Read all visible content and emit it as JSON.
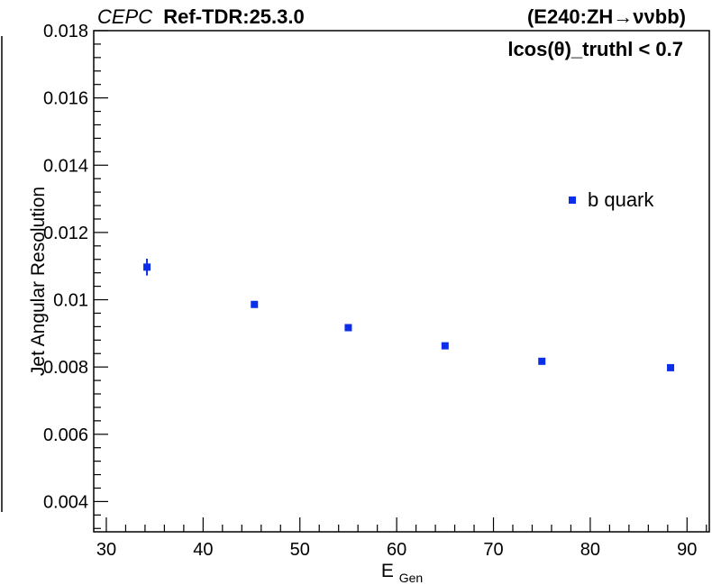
{
  "header": {
    "experiment": "CEPC",
    "reference": "Ref-TDR:25.3.0",
    "process": "(E240:ZH→ννbb)",
    "selection": "lcos(θ)_truthl < 0.7"
  },
  "chart_data": {
    "type": "scatter",
    "ylabel": "Jet Angular Resolution",
    "xlabel_main": "E",
    "xlabel_sub": "Gen",
    "xlim": [
      28.7,
      92.3
    ],
    "ylim": [
      0.0031,
      0.018
    ],
    "x_ticks": [
      30,
      40,
      50,
      60,
      70,
      80,
      90
    ],
    "y_ticks": [
      0.004,
      0.006,
      0.008,
      0.01,
      0.012,
      0.014,
      0.016,
      0.018
    ],
    "x_tick_labels": [
      "30",
      "40",
      "50",
      "60",
      "70",
      "80",
      "90"
    ],
    "y_tick_labels": [
      "0.004",
      "0.006",
      "0.008",
      "0.01",
      "0.012",
      "0.014",
      "0.016",
      "0.018"
    ],
    "legend_position": "upper-right",
    "series": [
      {
        "name": "b quark",
        "color": "#0a2eea",
        "marker": "square",
        "points": [
          {
            "x": 34.2,
            "y": 0.01097,
            "err": 0.00025
          },
          {
            "x": 45.3,
            "y": 0.00986,
            "err": 0.0001
          },
          {
            "x": 55.0,
            "y": 0.00917,
            "err": 6e-05
          },
          {
            "x": 65.0,
            "y": 0.00863,
            "err": 5e-05
          },
          {
            "x": 75.0,
            "y": 0.00817,
            "err": 4e-05
          },
          {
            "x": 88.3,
            "y": 0.00798,
            "err": 4e-05
          }
        ]
      }
    ]
  }
}
